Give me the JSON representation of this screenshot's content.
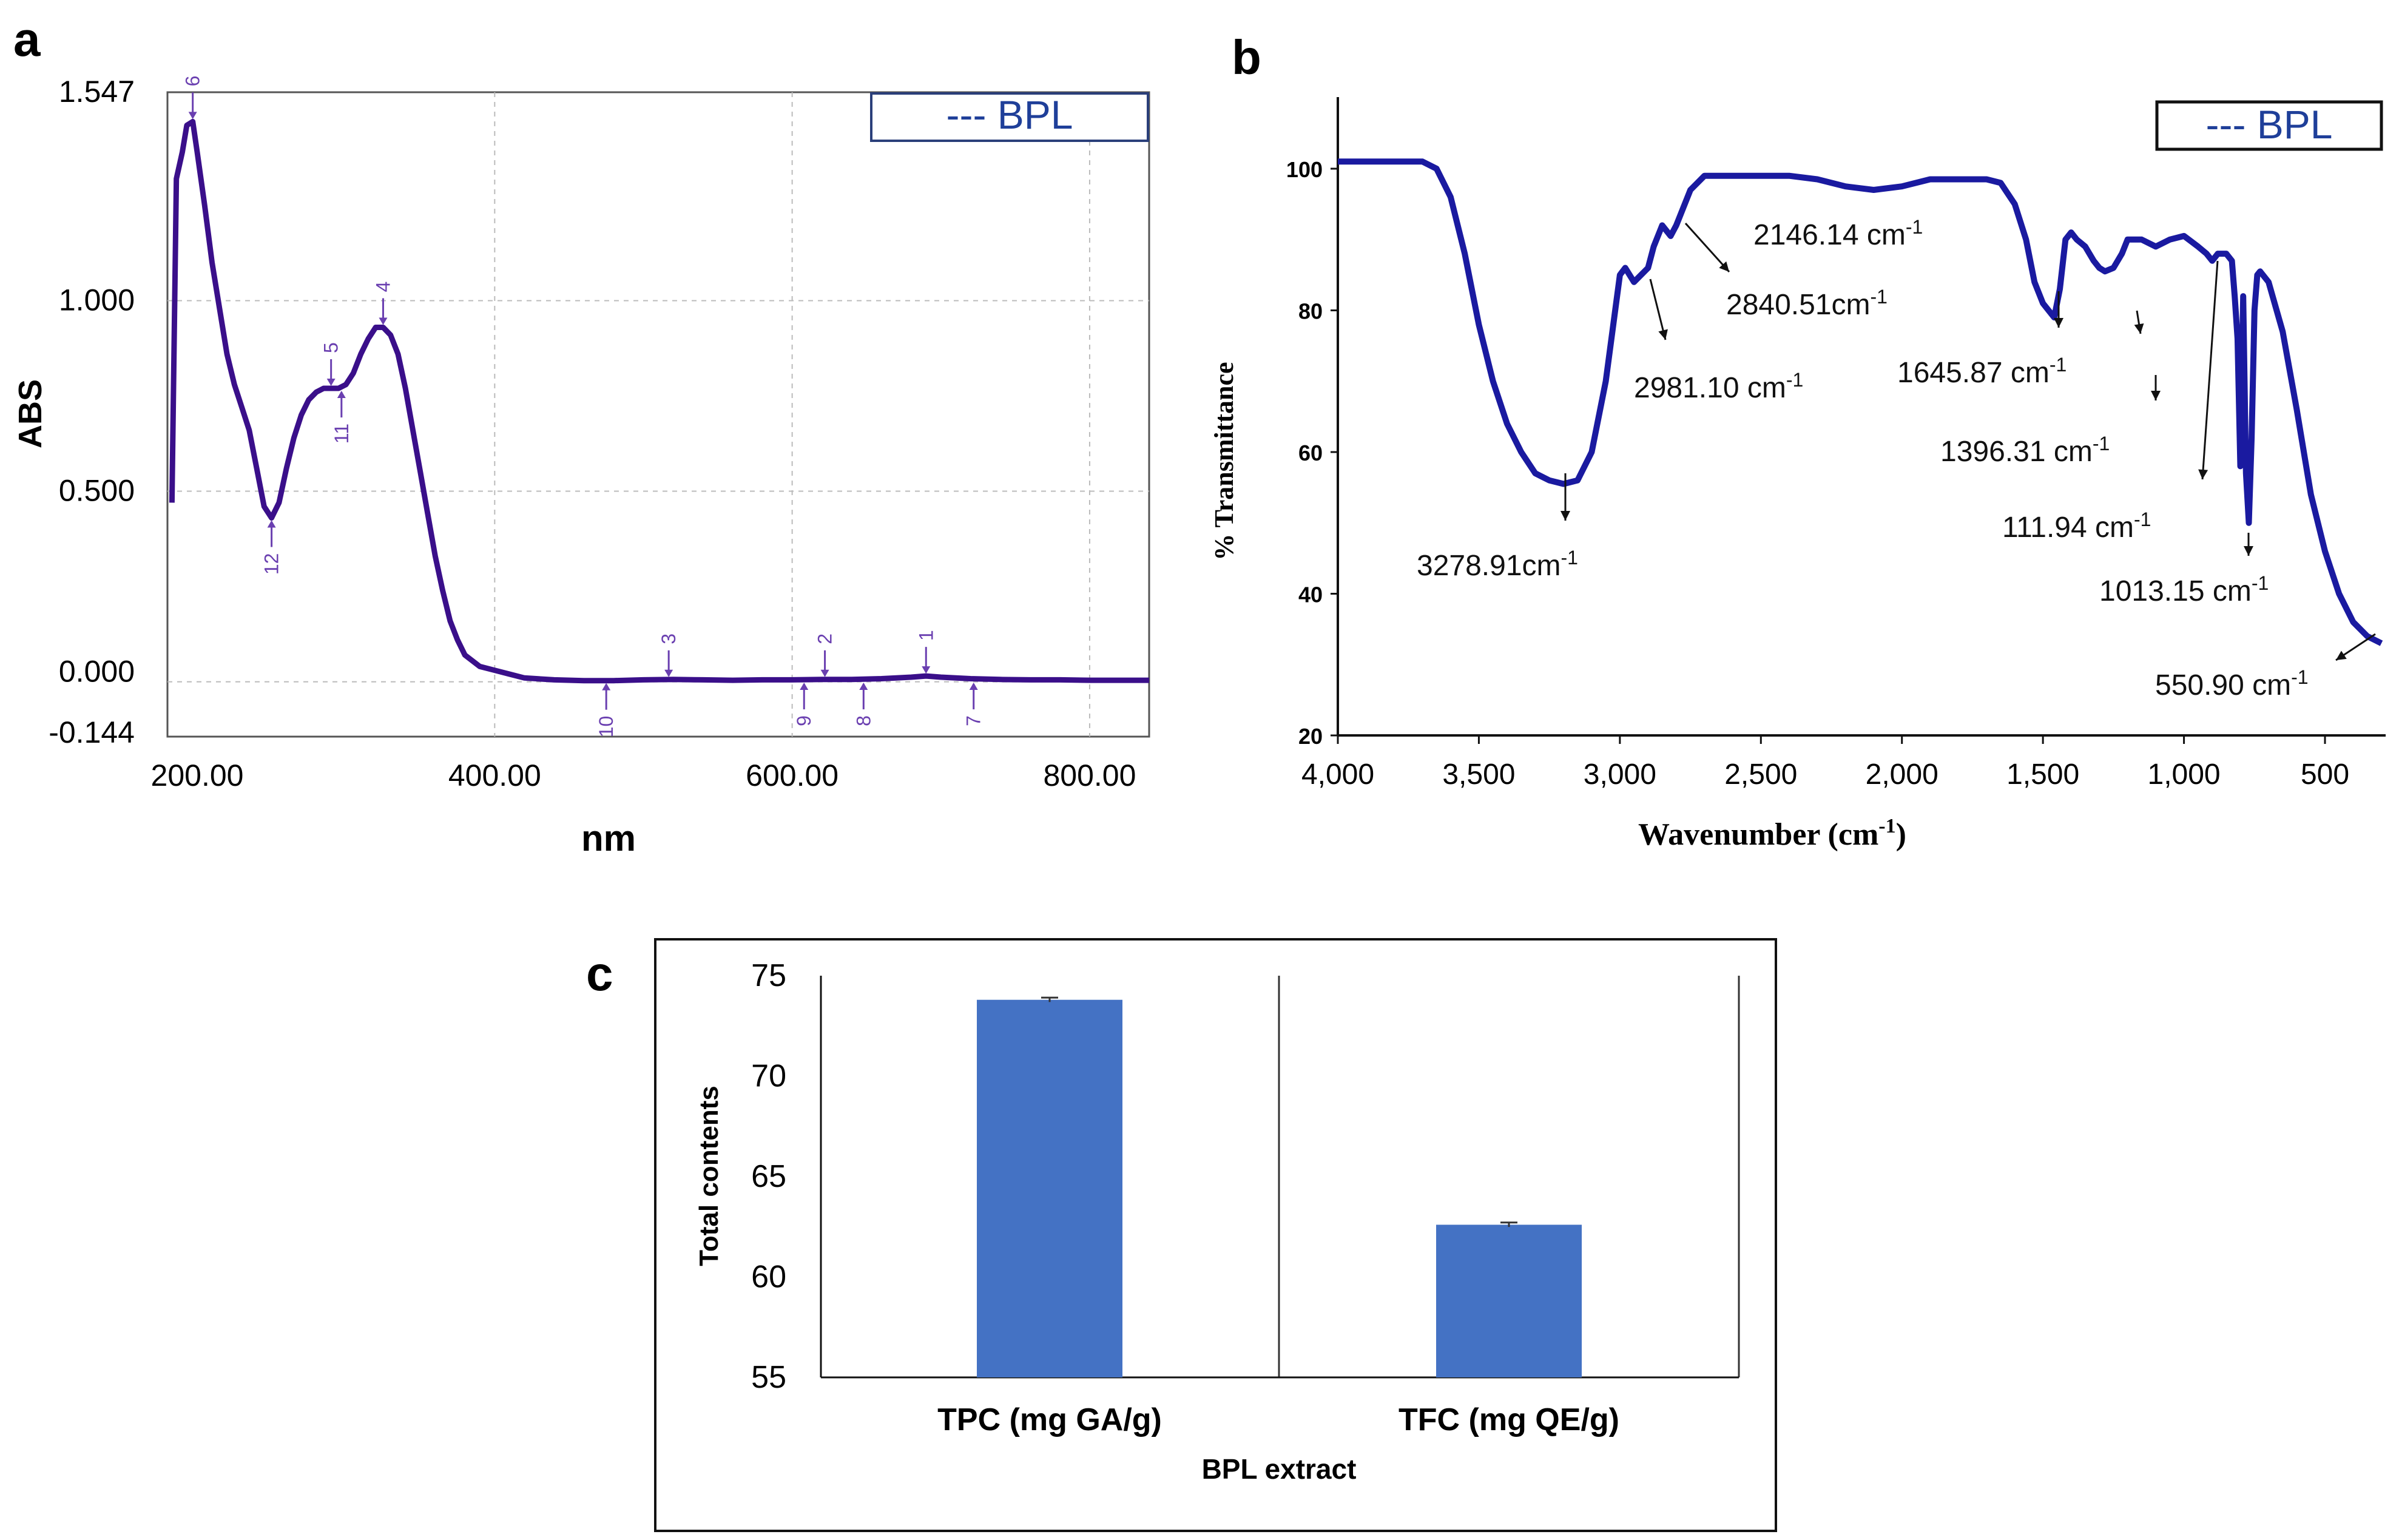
{
  "colors": {
    "uv_line": "#3a0f8a",
    "uv_marker": "#6a3fb0",
    "ir_line": "#1a1aa0",
    "bar_fill": "#4472c4",
    "legend_text": "#1f3f99"
  },
  "chart_data": [
    {
      "id": "a",
      "panel_label": "a",
      "type": "line",
      "title": "",
      "xlabel": "nm",
      "ylabel": "ABS",
      "xlim": [
        180,
        840
      ],
      "ylim": [
        -0.144,
        1.547
      ],
      "x_ticks": [
        200,
        400,
        600,
        800
      ],
      "x_tick_labels": [
        "200.00",
        "400.00",
        "600.00",
        "800.00"
      ],
      "y_ticks": [
        -0.144,
        0.0,
        0.5,
        1.0,
        1.547
      ],
      "y_tick_labels": [
        "-0.144",
        "0.000",
        "0.500",
        "1.000",
        "1.547"
      ],
      "legend": "--- BPL",
      "series": [
        {
          "name": "BPL",
          "x": [
            183,
            186,
            190,
            193,
            197,
            200,
            205,
            210,
            215,
            220,
            225,
            230,
            235,
            240,
            245,
            250,
            255,
            260,
            265,
            270,
            275,
            280,
            285,
            290,
            295,
            300,
            305,
            310,
            315,
            320,
            325,
            330,
            335,
            340,
            345,
            350,
            355,
            360,
            365,
            370,
            375,
            380,
            390,
            400,
            410,
            420,
            440,
            460,
            480,
            500,
            520,
            540,
            560,
            580,
            600,
            620,
            640,
            660,
            680,
            690,
            700,
            720,
            740,
            760,
            780,
            800,
            820,
            840
          ],
          "y": [
            0.47,
            1.32,
            1.39,
            1.46,
            1.47,
            1.39,
            1.25,
            1.1,
            0.98,
            0.86,
            0.78,
            0.72,
            0.66,
            0.56,
            0.46,
            0.43,
            0.47,
            0.56,
            0.64,
            0.7,
            0.74,
            0.76,
            0.77,
            0.77,
            0.77,
            0.78,
            0.81,
            0.86,
            0.9,
            0.93,
            0.93,
            0.91,
            0.86,
            0.77,
            0.66,
            0.55,
            0.44,
            0.33,
            0.24,
            0.16,
            0.11,
            0.07,
            0.04,
            0.03,
            0.02,
            0.01,
            0.005,
            0.003,
            0.003,
            0.005,
            0.006,
            0.005,
            0.004,
            0.005,
            0.005,
            0.006,
            0.006,
            0.008,
            0.012,
            0.015,
            0.012,
            0.008,
            0.006,
            0.005,
            0.005,
            0.004,
            0.004,
            0.004
          ]
        }
      ],
      "peak_markers": [
        {
          "label": "1",
          "x": 690,
          "y": 0.015,
          "side": "above"
        },
        {
          "label": "2",
          "x": 622,
          "y": 0.006,
          "side": "above"
        },
        {
          "label": "3",
          "x": 517,
          "y": 0.006,
          "side": "above"
        },
        {
          "label": "4",
          "x": 325,
          "y": 0.93,
          "side": "above"
        },
        {
          "label": "5",
          "x": 290,
          "y": 0.77,
          "side": "above"
        },
        {
          "label": "6",
          "x": 197,
          "y": 1.47,
          "side": "above"
        },
        {
          "label": "7",
          "x": 722,
          "y": 0.004,
          "side": "below"
        },
        {
          "label": "8",
          "x": 648,
          "y": 0.004,
          "side": "below"
        },
        {
          "label": "9",
          "x": 608,
          "y": 0.004,
          "side": "below"
        },
        {
          "label": "10",
          "x": 475,
          "y": 0.003,
          "side": "below"
        },
        {
          "label": "11",
          "x": 297,
          "y": 0.77,
          "side": "below"
        },
        {
          "label": "12",
          "x": 250,
          "y": 0.43,
          "side": "below"
        }
      ]
    },
    {
      "id": "b",
      "panel_label": "b",
      "type": "line",
      "title": "",
      "xlabel": "Wavenumber (cm",
      "xlabel_sup": "-1",
      "xlabel_close": ")",
      "ylabel": "% Transmittance",
      "xlim": [
        4000,
        300
      ],
      "ylim": [
        20,
        110
      ],
      "x_ticks": [
        4000,
        3500,
        3000,
        2500,
        2000,
        1500,
        1000,
        500
      ],
      "x_tick_labels": [
        "4,000",
        "3,500",
        "3,000",
        "2,500",
        "2,000",
        "1,500",
        "1,000",
        "500"
      ],
      "y_ticks": [
        20,
        40,
        60,
        80,
        100
      ],
      "y_tick_labels": [
        "20",
        "40",
        "60",
        "80",
        "100"
      ],
      "legend": "--- BPL",
      "series": [
        {
          "name": "BPL",
          "x": [
            4000,
            3900,
            3800,
            3700,
            3650,
            3600,
            3550,
            3500,
            3450,
            3400,
            3350,
            3300,
            3250,
            3200,
            3150,
            3100,
            3050,
            3000,
            2981,
            2950,
            2900,
            2880,
            2850,
            2820,
            2800,
            2750,
            2700,
            2600,
            2500,
            2400,
            2300,
            2200,
            2100,
            2000,
            1900,
            1800,
            1700,
            1650,
            1600,
            1560,
            1530,
            1500,
            1480,
            1460,
            1440,
            1420,
            1400,
            1380,
            1350,
            1320,
            1300,
            1280,
            1250,
            1220,
            1200,
            1150,
            1100,
            1050,
            1000,
            950,
            920,
            900,
            880,
            850,
            830,
            820,
            810,
            800,
            790,
            780,
            770,
            760,
            750,
            740,
            730,
            720,
            700,
            650,
            600,
            550,
            500,
            450,
            400,
            350,
            300
          ],
          "y": [
            101,
            101,
            101,
            101,
            100,
            96,
            88,
            78,
            70,
            64,
            60,
            57,
            56,
            55.5,
            56,
            60,
            70,
            85,
            86,
            84,
            86,
            89,
            92,
            90.5,
            92,
            97,
            99,
            99,
            99,
            99,
            98.5,
            97.5,
            97,
            97.5,
            98.5,
            98.5,
            98.5,
            98,
            95,
            90,
            84,
            81,
            80,
            79,
            83,
            90,
            91,
            90,
            89,
            87,
            86,
            85.5,
            86,
            88,
            90,
            90,
            89,
            90,
            90.5,
            89,
            88,
            87,
            88,
            88,
            87,
            82,
            76,
            58,
            82,
            57,
            50,
            62,
            80,
            85,
            85.5,
            85,
            84,
            77,
            66,
            54,
            46,
            40,
            36,
            34,
            33
          ]
        }
      ],
      "annotations": [
        {
          "text": "3278.91cm",
          "sup": "-1"
        },
        {
          "text": "2981.10 cm",
          "sup": "-1"
        },
        {
          "text": "2840.51cm",
          "sup": "-1"
        },
        {
          "text": "2146.14 cm",
          "sup": "-1"
        },
        {
          "text": "1645.87 cm",
          "sup": "-1"
        },
        {
          "text": "1396.31 cm",
          "sup": "-1"
        },
        {
          "text": "111.94 cm",
          "sup": "-1"
        },
        {
          "text": "1013.15 cm",
          "sup": "-1"
        },
        {
          "text": "550.90 cm",
          "sup": "-1"
        }
      ]
    },
    {
      "id": "c",
      "panel_label": "c",
      "type": "bar",
      "title": "",
      "xlabel": "BPL extract",
      "ylabel": "Total contents",
      "ylim": [
        55,
        75
      ],
      "y_ticks": [
        55,
        60,
        65,
        70,
        75
      ],
      "y_tick_labels": [
        "55",
        "60",
        "65",
        "70",
        "75"
      ],
      "categories": [
        "TPC (mg GA/g)",
        "TFC (mg QE/g)"
      ],
      "values": [
        73.8,
        62.6
      ],
      "errors": [
        0.05,
        0.05
      ]
    }
  ]
}
